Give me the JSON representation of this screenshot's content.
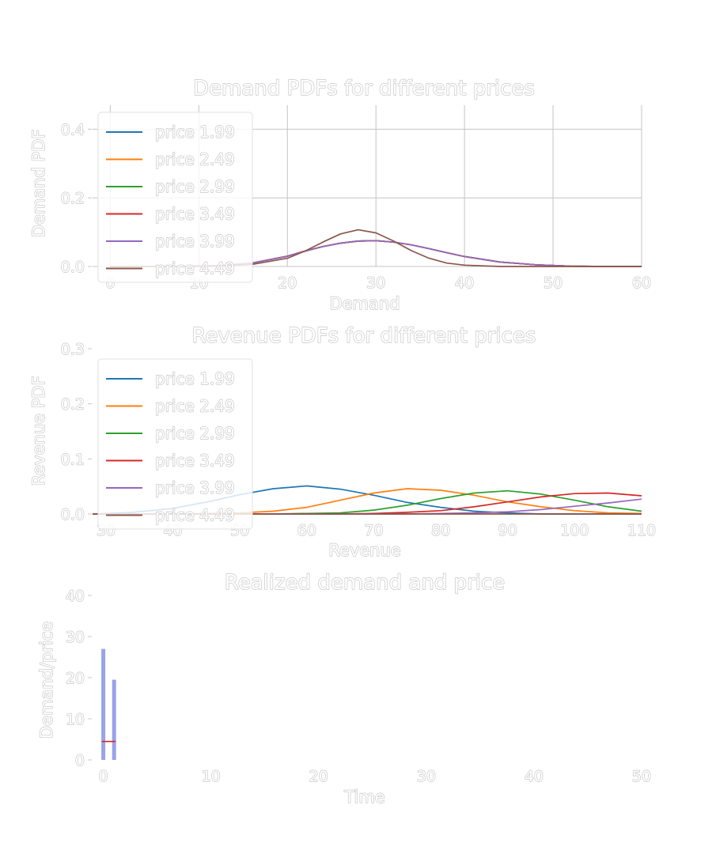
{
  "chart_data": [
    {
      "type": "line",
      "title": "Demand PDFs for different prices",
      "xlabel": "Demand",
      "ylabel": "Demand PDF",
      "xlim": [
        -2,
        60
      ],
      "ylim": [
        0,
        0.47
      ],
      "xticks": [
        0,
        10,
        20,
        30,
        40,
        50,
        60
      ],
      "yticks": [
        0.0,
        0.2,
        0.4
      ],
      "ytick_labels": [
        "0.0",
        "0.2",
        "0.4"
      ],
      "grid": true,
      "legend_position": "upper-left",
      "x": [
        0,
        4,
        8,
        12,
        16,
        20,
        22,
        24,
        26,
        28,
        30,
        32,
        34,
        36,
        38,
        40,
        44,
        48,
        52,
        56,
        60
      ],
      "series": [
        {
          "name": "price 1.99",
          "color": "#1f77b4",
          "values": [
            0,
            0,
            0,
            0.002,
            0.01,
            0.03,
            0.045,
            0.058,
            0.068,
            0.074,
            0.075,
            0.071,
            0.063,
            0.052,
            0.04,
            0.029,
            0.013,
            0.005,
            0.001,
            0,
            0
          ]
        },
        {
          "name": "price 2.49",
          "color": "#ff7f0e",
          "values": [
            0,
            0,
            0,
            0.002,
            0.01,
            0.03,
            0.045,
            0.058,
            0.068,
            0.074,
            0.075,
            0.071,
            0.063,
            0.052,
            0.04,
            0.029,
            0.013,
            0.005,
            0.001,
            0,
            0
          ]
        },
        {
          "name": "price 2.99",
          "color": "#2ca02c",
          "values": [
            0,
            0,
            0,
            0.002,
            0.01,
            0.03,
            0.045,
            0.058,
            0.068,
            0.074,
            0.075,
            0.071,
            0.063,
            0.052,
            0.04,
            0.029,
            0.013,
            0.005,
            0.001,
            0,
            0
          ]
        },
        {
          "name": "price 3.49",
          "color": "#d62728",
          "values": [
            0,
            0,
            0,
            0.002,
            0.01,
            0.03,
            0.045,
            0.058,
            0.068,
            0.074,
            0.075,
            0.071,
            0.063,
            0.052,
            0.04,
            0.029,
            0.013,
            0.005,
            0.001,
            0,
            0
          ]
        },
        {
          "name": "price 3.99",
          "color": "#9467bd",
          "values": [
            0,
            0,
            0,
            0.002,
            0.01,
            0.03,
            0.045,
            0.058,
            0.068,
            0.074,
            0.075,
            0.071,
            0.063,
            0.052,
            0.04,
            0.029,
            0.013,
            0.005,
            0.001,
            0,
            0
          ]
        },
        {
          "name": "price 4.49",
          "color": "#8c564b",
          "values": [
            0,
            0,
            0,
            0.001,
            0.006,
            0.024,
            0.045,
            0.071,
            0.095,
            0.107,
            0.098,
            0.074,
            0.046,
            0.024,
            0.01,
            0.004,
            0,
            0,
            0,
            0,
            0
          ]
        }
      ]
    },
    {
      "type": "line",
      "title": "Revenue PDFs for different prices",
      "xlabel": "Revenue",
      "ylabel": "Revenue PDF",
      "xlim": [
        28,
        110
      ],
      "ylim": [
        0,
        0.3
      ],
      "xticks": [
        30,
        40,
        50,
        60,
        70,
        80,
        90,
        100,
        110
      ],
      "yticks": [
        0.0,
        0.1,
        0.2,
        0.3
      ],
      "ytick_labels": [
        "0.0",
        "0.1",
        "0.2",
        "0.3"
      ],
      "grid": false,
      "legend_position": "upper-left",
      "x": [
        28,
        34,
        40,
        46,
        50,
        55,
        60,
        65,
        70,
        75,
        80,
        85,
        90,
        95,
        100,
        105,
        110
      ],
      "series": [
        {
          "name": "price 1.99",
          "color": "#1f77b4",
          "values": [
            0,
            0.003,
            0.01,
            0.024,
            0.035,
            0.046,
            0.051,
            0.045,
            0.034,
            0.021,
            0.012,
            0.005,
            0.002,
            0,
            0,
            0,
            0
          ]
        },
        {
          "name": "price 2.49",
          "color": "#ff7f0e",
          "values": [
            0,
            0,
            0,
            0.001,
            0.002,
            0.005,
            0.012,
            0.025,
            0.038,
            0.046,
            0.043,
            0.034,
            0.022,
            0.013,
            0.006,
            0.002,
            0.001
          ]
        },
        {
          "name": "price 2.99",
          "color": "#2ca02c",
          "values": [
            0,
            0,
            0,
            0,
            0,
            0,
            0.001,
            0.002,
            0.007,
            0.016,
            0.028,
            0.038,
            0.042,
            0.036,
            0.025,
            0.013,
            0.005
          ]
        },
        {
          "name": "price 3.49",
          "color": "#d62728",
          "values": [
            0,
            0,
            0,
            0,
            0,
            0,
            0,
            0,
            0.001,
            0.003,
            0.006,
            0.013,
            0.022,
            0.031,
            0.037,
            0.038,
            0.033
          ]
        },
        {
          "name": "price 3.99",
          "color": "#9467bd",
          "values": [
            0,
            0,
            0,
            0,
            0,
            0,
            0,
            0,
            0,
            0,
            0.001,
            0.002,
            0.004,
            0.008,
            0.014,
            0.02,
            0.027
          ]
        },
        {
          "name": "price 4.49",
          "color": "#8c564b",
          "values": [
            0,
            0,
            0,
            0,
            0,
            0,
            0,
            0,
            0,
            0,
            0,
            0,
            0,
            0,
            0,
            0,
            0
          ]
        }
      ]
    },
    {
      "type": "bar",
      "title": "Realized demand and price",
      "xlabel": "Time",
      "ylabel": "Demand/price",
      "xlim": [
        -1,
        50
      ],
      "ylim": [
        0,
        40
      ],
      "xticks": [
        0,
        10,
        20,
        30,
        40,
        50
      ],
      "yticks": [
        0,
        10,
        20,
        30,
        40
      ],
      "ytick_labels": [
        "0",
        "10",
        "20",
        "30",
        "40"
      ],
      "grid": false,
      "bar_color": "#9aa3e8",
      "price_color": "#d62728",
      "bars": [
        {
          "x": 0,
          "value": 27
        },
        {
          "x": 1,
          "value": 19.5
        }
      ],
      "price_line": {
        "x": [
          0,
          1
        ],
        "values": [
          4.49,
          4.49
        ]
      }
    }
  ]
}
